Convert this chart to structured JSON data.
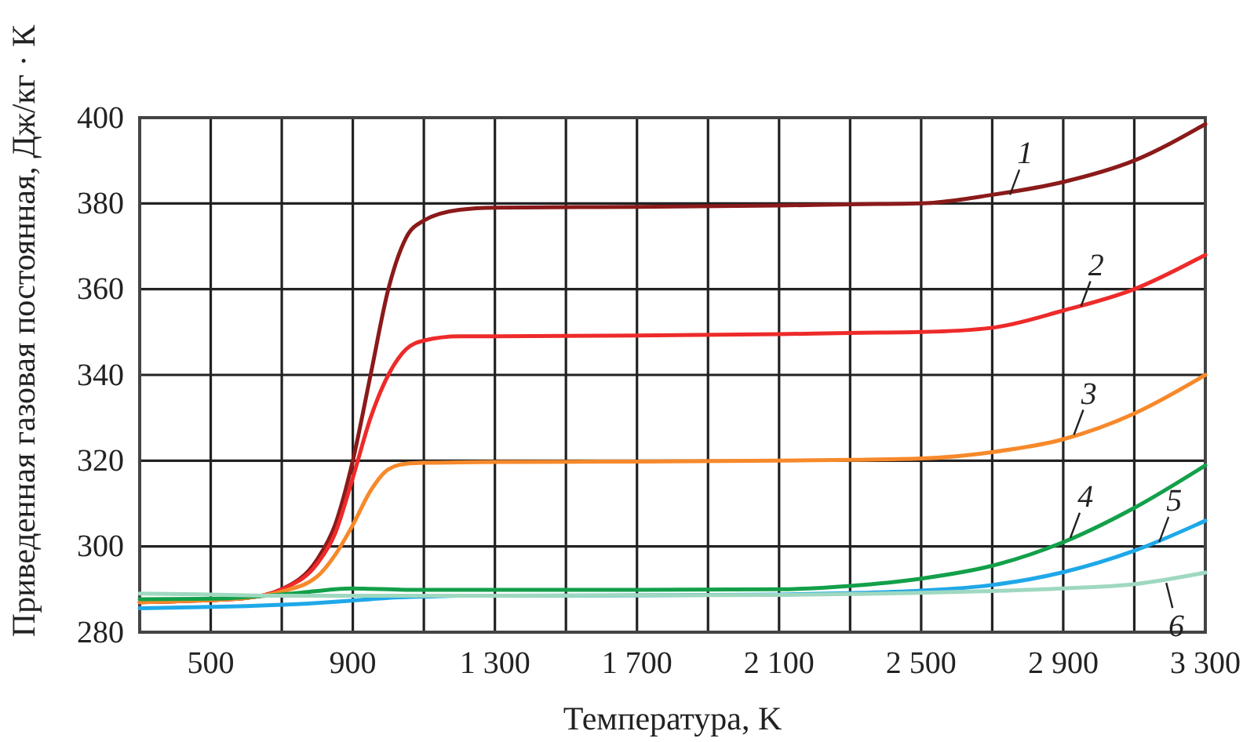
{
  "chart_data": {
    "type": "line",
    "xlabel": "Температура, K",
    "ylabel": "Приведенная газовая постоянная, Дж/кг · К",
    "x": [
      300,
      500,
      600,
      700,
      800,
      850,
      900,
      950,
      1000,
      1050,
      1100,
      1200,
      1300,
      1700,
      2100,
      2300,
      2500,
      2700,
      2900,
      3100,
      3300
    ],
    "series": [
      {
        "color": "#8b1a1a",
        "values": [
          287,
          287.5,
          288,
          290,
          297,
          305,
          320,
          340,
          360,
          372,
          376,
          378.5,
          379,
          379.2,
          379.5,
          379.8,
          380,
          382,
          385,
          390,
          398.5
        ]
      },
      {
        "color": "#ee2a2a",
        "values": [
          287,
          287.5,
          288,
          290,
          296,
          303,
          316,
          330,
          340,
          346,
          348,
          349,
          349,
          349.2,
          349.5,
          349.8,
          350,
          351,
          355,
          360,
          368
        ]
      },
      {
        "color": "#f7892a",
        "values": [
          287,
          287.5,
          288,
          289.5,
          293,
          298,
          305,
          313,
          318,
          319.3,
          319.5,
          319.6,
          319.7,
          319.8,
          320,
          320.2,
          320.5,
          322,
          325,
          331,
          340
        ]
      },
      {
        "color": "#13a04a",
        "values": [
          287.7,
          287.8,
          288.2,
          288.8,
          289.6,
          290,
          290.2,
          290.1,
          290,
          289.9,
          289.9,
          289.9,
          289.9,
          289.9,
          290,
          290.8,
          292.5,
          295.5,
          301,
          309,
          318.9
        ]
      },
      {
        "color": "#1fa8e8",
        "values": [
          285.6,
          285.9,
          286.1,
          286.4,
          286.8,
          287.1,
          287.4,
          287.7,
          288,
          288.2,
          288.3,
          288.5,
          288.5,
          288.6,
          288.8,
          289.1,
          289.7,
          291,
          294,
          299,
          306
        ]
      },
      {
        "color": "#9fd8c0",
        "values": [
          289,
          288.8,
          288.6,
          288.5,
          288.5,
          288.5,
          288.5,
          288.5,
          288.5,
          288.5,
          288.5,
          288.5,
          288.5,
          288.6,
          288.7,
          288.9,
          289.2,
          289.6,
          290.2,
          291.2,
          293.9
        ]
      }
    ],
    "xlim": [
      300,
      3300
    ],
    "xticks": [
      {
        "value": 300,
        "label": null
      },
      500,
      {
        "value": 700,
        "label": null
      },
      900,
      {
        "value": 1100,
        "label": null
      },
      {
        "value": 1300,
        "label": "1 300"
      },
      {
        "value": 1500,
        "label": null
      },
      {
        "value": 1700,
        "label": "1 700"
      },
      {
        "value": 1900,
        "label": null
      },
      {
        "value": 2100,
        "label": "2 100"
      },
      {
        "value": 2300,
        "label": null
      },
      {
        "value": 2500,
        "label": "2 500"
      },
      {
        "value": 2700,
        "label": null
      },
      {
        "value": 2900,
        "label": "2 900"
      },
      {
        "value": 3100,
        "label": null
      },
      {
        "value": 3300,
        "label": "3 300"
      }
    ],
    "ylim": [
      280,
      400
    ],
    "yticks": [
      280,
      300,
      320,
      340,
      360,
      380,
      400
    ],
    "grid": true,
    "annotations": [
      {
        "text": "1",
        "x": 2750,
        "y": 382
      },
      {
        "text": "2",
        "x": 2950,
        "y": 356
      },
      {
        "text": "3",
        "x": 2930,
        "y": 326
      },
      {
        "text": "4",
        "x": 2920,
        "y": 302
      },
      {
        "text": "5",
        "x": 3170,
        "y": 301
      },
      {
        "text": "6",
        "x": 3190,
        "y": 291.5
      }
    ]
  }
}
